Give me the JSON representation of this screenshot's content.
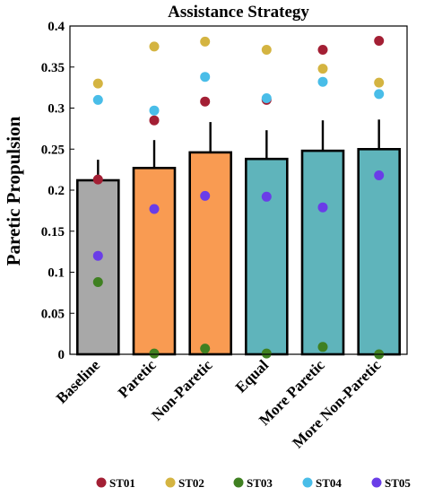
{
  "chart_data": {
    "type": "bar",
    "title": "Assistance Strategy",
    "xlabel": "",
    "ylabel": "Paretic Propulsion",
    "ylim": [
      0,
      0.4
    ],
    "yticks": [
      "0",
      "0.05",
      "0.1",
      "0.15",
      "0.2",
      "0.25",
      "0.3",
      "0.35",
      "0.4"
    ],
    "categories": [
      "Baseline",
      "Paretic",
      "Non-Paretic",
      "Equal",
      "More Paretic",
      "More Non-Paretic"
    ],
    "values": [
      0.212,
      0.227,
      0.246,
      0.238,
      0.248,
      0.25
    ],
    "error_upper": [
      0.237,
      0.261,
      0.283,
      0.273,
      0.285,
      0.286
    ],
    "bar_colors": [
      "#a8a8a8",
      "#f99b52",
      "#f99b52",
      "#5fb4bb",
      "#5fb4bb",
      "#5fb4bb"
    ],
    "series": [
      {
        "name": "ST01",
        "color": "#a31f34",
        "values": [
          0.213,
          0.285,
          0.308,
          0.31,
          0.371,
          0.382
        ]
      },
      {
        "name": "ST02",
        "color": "#d4b441",
        "values": [
          0.33,
          0.375,
          0.381,
          0.371,
          0.348,
          0.331
        ]
      },
      {
        "name": "ST03",
        "color": "#3f8021",
        "values": [
          0.088,
          0.001,
          0.007,
          0.001,
          0.009,
          0.0
        ]
      },
      {
        "name": "ST04",
        "color": "#49bde8",
        "values": [
          0.31,
          0.297,
          0.338,
          0.312,
          0.332,
          0.317
        ]
      },
      {
        "name": "ST05",
        "color": "#6a3de8",
        "values": [
          0.12,
          0.177,
          0.193,
          0.192,
          0.179,
          0.218
        ]
      }
    ],
    "legend_position": "bottom",
    "grid": false
  }
}
